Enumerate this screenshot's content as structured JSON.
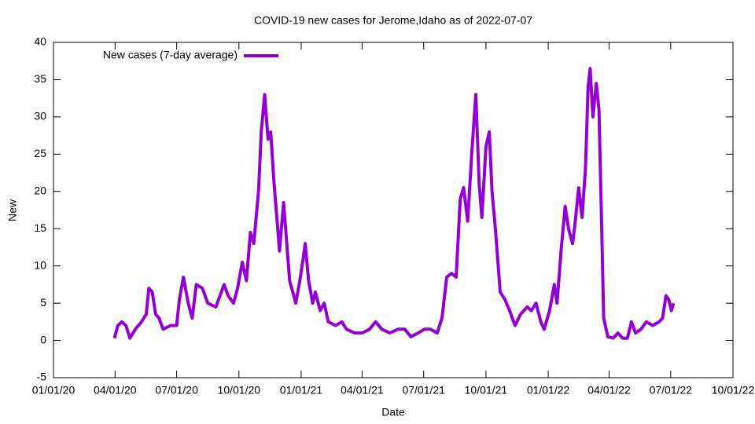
{
  "chart_data": {
    "type": "line",
    "title": "COVID-19 new cases for Jerome,Idaho as of 2022-07-07",
    "x_label": "Date",
    "y_label": "New",
    "legend": "top-left",
    "xlim": [
      "2020-01-01",
      "2022-10-01"
    ],
    "xticks": [
      {
        "value": "2020-01-01",
        "label": "01/01/20"
      },
      {
        "value": "2020-04-01",
        "label": "04/01/20"
      },
      {
        "value": "2020-07-01",
        "label": "07/01/20"
      },
      {
        "value": "2020-10-01",
        "label": "10/01/20"
      },
      {
        "value": "2021-01-01",
        "label": "01/01/21"
      },
      {
        "value": "2021-04-01",
        "label": "04/01/21"
      },
      {
        "value": "2021-07-01",
        "label": "07/01/21"
      },
      {
        "value": "2021-10-01",
        "label": "10/01/21"
      },
      {
        "value": "2022-01-01",
        "label": "01/01/22"
      },
      {
        "value": "2022-04-01",
        "label": "04/01/22"
      },
      {
        "value": "2022-07-01",
        "label": "07/01/22"
      },
      {
        "value": "2022-10-01",
        "label": "10/01/22"
      }
    ],
    "ylim": [
      -5,
      40
    ],
    "yticks": [
      -5,
      0,
      5,
      10,
      15,
      20,
      25,
      30,
      35,
      40
    ],
    "x": [
      "2020-03-31",
      "2020-04-05",
      "2020-04-11",
      "2020-04-17",
      "2020-04-23",
      "2020-05-01",
      "2020-05-10",
      "2020-05-17",
      "2020-05-21",
      "2020-05-26",
      "2020-05-31",
      "2020-06-05",
      "2020-06-11",
      "2020-06-22",
      "2020-07-01",
      "2020-07-05",
      "2020-07-11",
      "2020-07-18",
      "2020-07-24",
      "2020-07-30",
      "2020-08-08",
      "2020-08-16",
      "2020-08-28",
      "2020-09-09",
      "2020-09-15",
      "2020-09-23",
      "2020-09-29",
      "2020-10-06",
      "2020-10-12",
      "2020-10-18",
      "2020-10-23",
      "2020-10-30",
      "2020-11-03",
      "2020-11-08",
      "2020-11-13",
      "2020-11-17",
      "2020-11-22",
      "2020-11-27",
      "2020-11-30",
      "2020-12-06",
      "2020-12-09",
      "2020-12-15",
      "2020-12-24",
      "2020-12-30",
      "2021-01-04",
      "2021-01-07",
      "2021-01-12",
      "2021-01-18",
      "2021-01-22",
      "2021-01-29",
      "2021-02-04",
      "2021-02-10",
      "2021-02-21",
      "2021-03-02",
      "2021-03-09",
      "2021-03-21",
      "2021-04-01",
      "2021-04-12",
      "2021-04-21",
      "2021-04-30",
      "2021-05-12",
      "2021-05-24",
      "2021-06-03",
      "2021-06-12",
      "2021-06-23",
      "2021-07-02",
      "2021-07-11",
      "2021-07-21",
      "2021-07-28",
      "2021-08-04",
      "2021-08-11",
      "2021-08-18",
      "2021-08-24",
      "2021-08-29",
      "2021-09-04",
      "2021-09-10",
      "2021-09-16",
      "2021-09-21",
      "2021-09-25",
      "2021-10-01",
      "2021-10-06",
      "2021-10-10",
      "2021-10-15",
      "2021-10-22",
      "2021-10-29",
      "2021-11-05",
      "2021-11-13",
      "2021-11-21",
      "2021-12-01",
      "2021-12-07",
      "2021-12-14",
      "2021-12-21",
      "2021-12-26",
      "2022-01-03",
      "2022-01-10",
      "2022-01-14",
      "2022-01-20",
      "2022-01-26",
      "2022-01-31",
      "2022-02-06",
      "2022-02-10",
      "2022-02-15",
      "2022-02-20",
      "2022-02-25",
      "2022-03-01",
      "2022-03-04",
      "2022-03-08",
      "2022-03-13",
      "2022-03-17",
      "2022-03-21",
      "2022-03-24",
      "2022-03-30",
      "2022-04-07",
      "2022-04-14",
      "2022-04-21",
      "2022-04-28",
      "2022-05-04",
      "2022-05-10",
      "2022-05-18",
      "2022-05-26",
      "2022-06-04",
      "2022-06-14",
      "2022-06-19",
      "2022-06-24",
      "2022-06-28",
      "2022-07-02",
      "2022-07-05"
    ],
    "series": [
      {
        "name": "New cases (7-day average)",
        "color": "#9400d3",
        "values": [
          0.3,
          2,
          2.5,
          2,
          0.3,
          1.5,
          2.5,
          3.5,
          7,
          6.5,
          3.5,
          3,
          1.5,
          2,
          2,
          5.5,
          8.5,
          5,
          3,
          7.5,
          7,
          5,
          4.5,
          7.5,
          6,
          5,
          7,
          10.5,
          8,
          14.5,
          13,
          20,
          28,
          33,
          27,
          28,
          21,
          15.5,
          12,
          18.5,
          15,
          8,
          5,
          8,
          11,
          13,
          8,
          5,
          6.5,
          4,
          5,
          2.5,
          2,
          2.5,
          1.5,
          1,
          1,
          1.5,
          2.5,
          1.5,
          1,
          1.5,
          1.5,
          0.5,
          1,
          1.5,
          1.5,
          1,
          3,
          8.5,
          9,
          8.5,
          19,
          20.5,
          16,
          25,
          33,
          21,
          16.5,
          26,
          28,
          20,
          15,
          6.5,
          5.5,
          4,
          2,
          3.5,
          4.5,
          4,
          5,
          2.5,
          1.5,
          4,
          7.5,
          5,
          12,
          18,
          15,
          13,
          16,
          20.5,
          16.5,
          23,
          34,
          36.5,
          30,
          34.5,
          31,
          15,
          3,
          0.5,
          0.3,
          1,
          0.3,
          0.3,
          2.5,
          1,
          1.5,
          2.5,
          2,
          2.5,
          3,
          6,
          5.5,
          4,
          5
        ]
      }
    ]
  }
}
